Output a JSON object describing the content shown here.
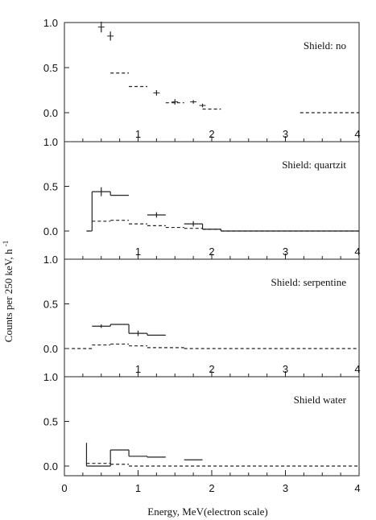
{
  "chart_data": {
    "type": "line",
    "xlabel": "Energy, MeV(electron scale)",
    "ylabel": "Counts per 250 keV, h",
    "ylabel_sup": "-1",
    "xlim": [
      0,
      4
    ],
    "x_ticks": [
      1,
      2,
      3,
      4
    ],
    "x_ticks_bottom": [
      0,
      1,
      2,
      3,
      4
    ],
    "ylim": [
      0,
      1.0
    ],
    "y_ticks": [
      0.0,
      0.5,
      1.0
    ],
    "y_tick_labels": [
      "0.0",
      "0.5",
      "1.0"
    ],
    "grid": false,
    "panels": [
      {
        "label": "Shield: no",
        "series": [
          {
            "style": "solid",
            "points": [
              {
                "x": 0.5,
                "y": 0.95,
                "err": 0.06
              },
              {
                "x": 0.625,
                "y": 0.85,
                "err": 0.05
              },
              {
                "x": 1.25,
                "y": 0.22,
                "err": 0.03
              },
              {
                "x": 1.5,
                "y": 0.12,
                "err": 0.03
              },
              {
                "x": 1.75,
                "y": 0.12,
                "err": 0.02
              },
              {
                "x": 1.875,
                "y": 0.08,
                "err": 0.02
              }
            ]
          },
          {
            "style": "dashed",
            "steps": [
              {
                "x0": 0.625,
                "x1": 0.875,
                "y": 0.44
              },
              {
                "x0": 0.875,
                "x1": 1.125,
                "y": 0.29
              },
              {
                "x0": 1.375,
                "x1": 1.625,
                "y": 0.11
              },
              {
                "x0": 1.875,
                "x1": 2.125,
                "y": 0.04
              },
              {
                "x0": 3.2,
                "x1": 4.0,
                "y": 0.0
              }
            ]
          }
        ]
      },
      {
        "label": "Shield: quartzit",
        "series": [
          {
            "style": "solid",
            "steps": [
              {
                "x0": 0.3,
                "x1": 0.375,
                "y": 0.0
              },
              {
                "x0": 0.375,
                "x1": 0.625,
                "y": 0.44
              },
              {
                "x0": 0.625,
                "x1": 0.875,
                "y": 0.4
              },
              {
                "x0": 1.125,
                "x1": 1.375,
                "y": 0.18
              },
              {
                "x0": 1.625,
                "x1": 1.875,
                "y": 0.08
              },
              {
                "x0": 1.875,
                "x1": 2.125,
                "y": 0.02
              },
              {
                "x0": 2.125,
                "x1": 4.0,
                "y": 0.0
              }
            ],
            "errors": [
              {
                "x": 0.5,
                "y": 0.44,
                "err": 0.05
              },
              {
                "x": 1.25,
                "y": 0.18,
                "err": 0.03
              },
              {
                "x": 1.75,
                "y": 0.08,
                "err": 0.03
              }
            ]
          },
          {
            "style": "dashed",
            "steps": [
              {
                "x0": 0.3,
                "x1": 0.375,
                "y": 0.0
              },
              {
                "x0": 0.375,
                "x1": 0.625,
                "y": 0.11
              },
              {
                "x0": 0.625,
                "x1": 0.875,
                "y": 0.12
              },
              {
                "x0": 0.875,
                "x1": 1.125,
                "y": 0.08
              },
              {
                "x0": 1.125,
                "x1": 1.375,
                "y": 0.06
              },
              {
                "x0": 1.375,
                "x1": 1.625,
                "y": 0.04
              },
              {
                "x0": 1.625,
                "x1": 1.875,
                "y": 0.03
              },
              {
                "x0": 1.875,
                "x1": 2.125,
                "y": 0.02
              },
              {
                "x0": 2.125,
                "x1": 4.0,
                "y": 0.0
              }
            ]
          }
        ]
      },
      {
        "label": "Shield: serpentine",
        "series": [
          {
            "style": "solid",
            "steps": [
              {
                "x0": 0.375,
                "x1": 0.625,
                "y": 0.25
              },
              {
                "x0": 0.625,
                "x1": 0.875,
                "y": 0.27
              },
              {
                "x0": 0.875,
                "x1": 1.125,
                "y": 0.17
              },
              {
                "x0": 1.125,
                "x1": 1.375,
                "y": 0.15
              }
            ],
            "errors": [
              {
                "x": 0.5,
                "y": 0.25,
                "err": 0.02
              },
              {
                "x": 1.0,
                "y": 0.17,
                "err": 0.03
              }
            ]
          },
          {
            "style": "dashed",
            "steps": [
              {
                "x0": 0.1,
                "x1": 0.375,
                "y": 0.0
              },
              {
                "x0": 0.375,
                "x1": 0.625,
                "y": 0.04
              },
              {
                "x0": 0.625,
                "x1": 0.875,
                "y": 0.05
              },
              {
                "x0": 0.875,
                "x1": 1.125,
                "y": 0.03
              },
              {
                "x0": 1.125,
                "x1": 1.625,
                "y": 0.01
              },
              {
                "x0": 1.625,
                "x1": 4.0,
                "y": 0.0
              }
            ]
          }
        ]
      },
      {
        "label": "Shield water",
        "series": [
          {
            "style": "solid",
            "steps": [
              {
                "x0": 0.3,
                "x1": 0.625,
                "y": 0.0
              },
              {
                "x0": 0.625,
                "x1": 0.875,
                "y": 0.18
              },
              {
                "x0": 0.875,
                "x1": 1.125,
                "y": 0.11
              },
              {
                "x0": 1.125,
                "x1": 1.375,
                "y": 0.1
              },
              {
                "x0": 1.625,
                "x1": 1.875,
                "y": 0.07
              }
            ],
            "spikes": [
              {
                "x": 0.3,
                "y": 0.26
              }
            ]
          },
          {
            "style": "dashed",
            "steps": [
              {
                "x0": 0.3,
                "x1": 0.625,
                "y": 0.03
              },
              {
                "x0": 0.625,
                "x1": 0.875,
                "y": 0.02
              },
              {
                "x0": 0.875,
                "x1": 4.0,
                "y": 0.0
              }
            ]
          }
        ]
      }
    ]
  }
}
